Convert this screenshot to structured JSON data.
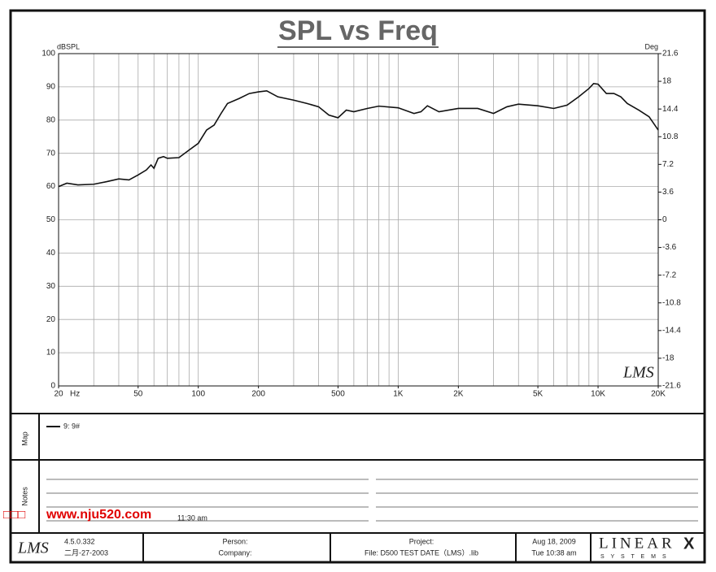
{
  "chart_data": {
    "type": "line",
    "title": "SPL vs Freq",
    "ylabel": "dBSPL",
    "y2label": "Deg",
    "xlabel": "Hz",
    "xscale": "log",
    "x": [
      20,
      22,
      25,
      30,
      35,
      40,
      45,
      50,
      55,
      58,
      60,
      63,
      67,
      70,
      80,
      90,
      100,
      110,
      120,
      130,
      140,
      160,
      180,
      200,
      220,
      250,
      300,
      350,
      400,
      450,
      500,
      550,
      600,
      700,
      800,
      1000,
      1200,
      1300,
      1400,
      1600,
      2000,
      2500,
      3000,
      3500,
      4000,
      5000,
      6000,
      7000,
      8000,
      9000,
      9500,
      10000,
      11000,
      12000,
      13000,
      14000,
      16000,
      18000,
      20000
    ],
    "series": [
      {
        "name": "9: 9#",
        "color": "#111111",
        "values": [
          60,
          61,
          60.5,
          60.7,
          61.5,
          62.3,
          62,
          63.5,
          65,
          66.5,
          65.5,
          68.5,
          69,
          68.5,
          68.7,
          71,
          73,
          77,
          78.5,
          82,
          85,
          86.5,
          88,
          88.5,
          88.8,
          87,
          86,
          85,
          84,
          81.5,
          80.7,
          83,
          82.5,
          83.5,
          84.2,
          83.7,
          82,
          82.5,
          84.3,
          82.5,
          83.5,
          83.5,
          82,
          84,
          84.8,
          84.3,
          83.5,
          84.5,
          87,
          89.5,
          91,
          90.8,
          88,
          88,
          87,
          85,
          83,
          81,
          77
        ]
      }
    ],
    "xlim": [
      20,
      20000
    ],
    "xticks": [
      20,
      50,
      100,
      200,
      500,
      {
        "value": 1000,
        "label": "1K"
      },
      {
        "value": 2000,
        "label": "2K"
      },
      {
        "value": 5000,
        "label": "5K"
      },
      {
        "value": 10000,
        "label": "10K"
      },
      {
        "value": 20000,
        "label": "20K"
      }
    ],
    "xgrid": [
      20,
      30,
      40,
      50,
      60,
      70,
      80,
      90,
      100,
      200,
      300,
      400,
      500,
      600,
      700,
      800,
      900,
      1000,
      2000,
      3000,
      4000,
      5000,
      6000,
      7000,
      8000,
      9000,
      10000,
      20000
    ],
    "ylim": [
      0,
      100
    ],
    "yticks": [
      0,
      10,
      20,
      30,
      40,
      50,
      60,
      70,
      80,
      90,
      100
    ],
    "y2lim": [
      -21.6,
      21.6
    ],
    "y2ticks": [
      -21.6,
      -18,
      -14.4,
      -10.8,
      -7.2,
      -3.6,
      0,
      3.6,
      7.2,
      10.8,
      14.4,
      18,
      21.6
    ],
    "grid": true
  },
  "panels": {
    "logo": "LMS",
    "map_label": "Map",
    "notes_label": "Notes",
    "notes_text": "11:30 am",
    "watermark": "www.nju520.com"
  },
  "footer": {
    "logo": "LMS",
    "version": "4.5.0.332",
    "date": "二月-27-2003",
    "person": "Person:",
    "company": "Company:",
    "project": "Project:",
    "file": "File: D500 TEST DATE（LMS）.lib",
    "print_date": "Aug 18, 2009",
    "print_time": "Tue 10:38 am",
    "brand": "LINEAR",
    "brand_x": "X",
    "brand_sub": "S Y S T E M S"
  }
}
